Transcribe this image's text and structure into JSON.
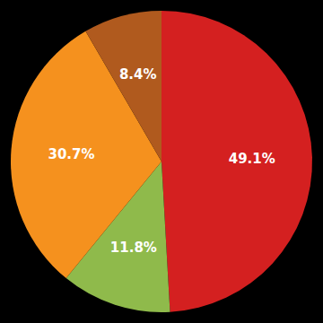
{
  "chart_data": {
    "type": "pie",
    "values": [
      49.1,
      11.8,
      30.7,
      8.4
    ],
    "value_labels": [
      "49.1%",
      "11.8%",
      "30.7%",
      "8.4%"
    ],
    "colors": [
      "#d42020",
      "#8fba4b",
      "#f5911e",
      "#b05a1e"
    ],
    "data_labels": true
  }
}
